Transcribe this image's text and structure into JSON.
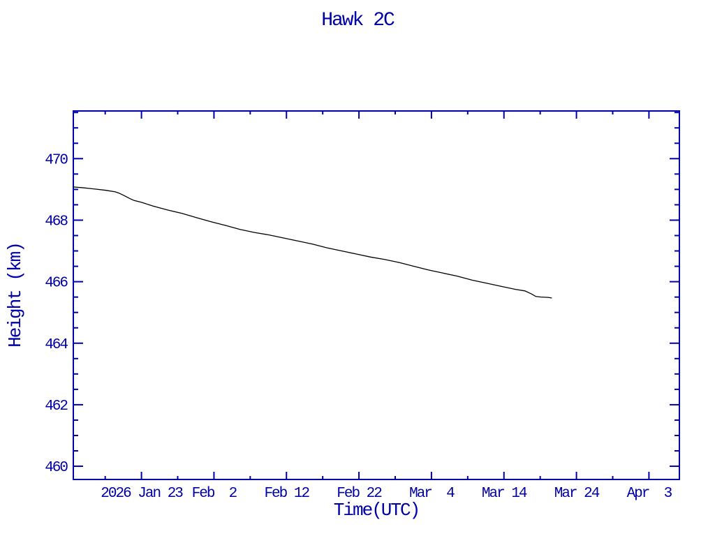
{
  "colors": {
    "axis": "#0000AA",
    "line": "#000000",
    "background": "#FFFFFF"
  },
  "chart_data": {
    "type": "line",
    "title": "Hawk 2C",
    "xlabel": "Time(UTC)",
    "ylabel": "Height (km)",
    "grid": false,
    "legend": null,
    "x_axis": {
      "unit": "days from left edge of axis (left edge ~2026 Jan 13.5)",
      "range": [
        0,
        83.6
      ],
      "minor_tick_interval": 5,
      "major_ticks": [
        {
          "day": 9.4,
          "label": "2026 Jan 23"
        },
        {
          "day": 19.4,
          "label": "Feb  2"
        },
        {
          "day": 29.4,
          "label": "Feb 12"
        },
        {
          "day": 39.4,
          "label": "Feb 22"
        },
        {
          "day": 49.4,
          "label": "Mar  4"
        },
        {
          "day": 59.4,
          "label": "Mar 14"
        },
        {
          "day": 69.4,
          "label": "Mar 24"
        },
        {
          "day": 79.4,
          "label": "Apr  3"
        }
      ]
    },
    "y_axis": {
      "unit": "km",
      "range": [
        459.57,
        471.55
      ],
      "minor_tick_interval": 0.5,
      "major_ticks": [
        {
          "value": 460,
          "label": "460"
        },
        {
          "value": 462,
          "label": "462"
        },
        {
          "value": 464,
          "label": "464"
        },
        {
          "value": 466,
          "label": "466"
        },
        {
          "value": 468,
          "label": "468"
        },
        {
          "value": 470,
          "label": "470"
        }
      ]
    },
    "series": [
      {
        "name": "height",
        "color": "#000000",
        "points": [
          [
            0.0,
            469.08
          ],
          [
            1.5,
            469.05
          ],
          [
            3.0,
            469.01
          ],
          [
            4.5,
            468.97
          ],
          [
            5.8,
            468.92
          ],
          [
            6.3,
            468.88
          ],
          [
            7.0,
            468.8
          ],
          [
            7.8,
            468.7
          ],
          [
            8.4,
            468.64
          ],
          [
            9.4,
            468.58
          ],
          [
            11.0,
            468.46
          ],
          [
            13.0,
            468.33
          ],
          [
            15.0,
            468.22
          ],
          [
            17.0,
            468.08
          ],
          [
            19.0,
            467.95
          ],
          [
            21.0,
            467.83
          ],
          [
            23.0,
            467.7
          ],
          [
            25.0,
            467.6
          ],
          [
            27.0,
            467.52
          ],
          [
            29.0,
            467.42
          ],
          [
            31.0,
            467.32
          ],
          [
            33.0,
            467.22
          ],
          [
            35.0,
            467.1
          ],
          [
            37.0,
            467.0
          ],
          [
            39.0,
            466.9
          ],
          [
            41.0,
            466.8
          ],
          [
            43.0,
            466.72
          ],
          [
            45.0,
            466.62
          ],
          [
            47.0,
            466.5
          ],
          [
            49.0,
            466.38
          ],
          [
            51.0,
            466.28
          ],
          [
            53.0,
            466.18
          ],
          [
            55.0,
            466.05
          ],
          [
            57.0,
            465.95
          ],
          [
            59.0,
            465.85
          ],
          [
            61.0,
            465.75
          ],
          [
            62.3,
            465.7
          ],
          [
            63.2,
            465.6
          ],
          [
            63.8,
            465.52
          ],
          [
            64.5,
            465.5
          ],
          [
            65.5,
            465.49
          ],
          [
            66.0,
            465.47
          ]
        ]
      }
    ]
  }
}
